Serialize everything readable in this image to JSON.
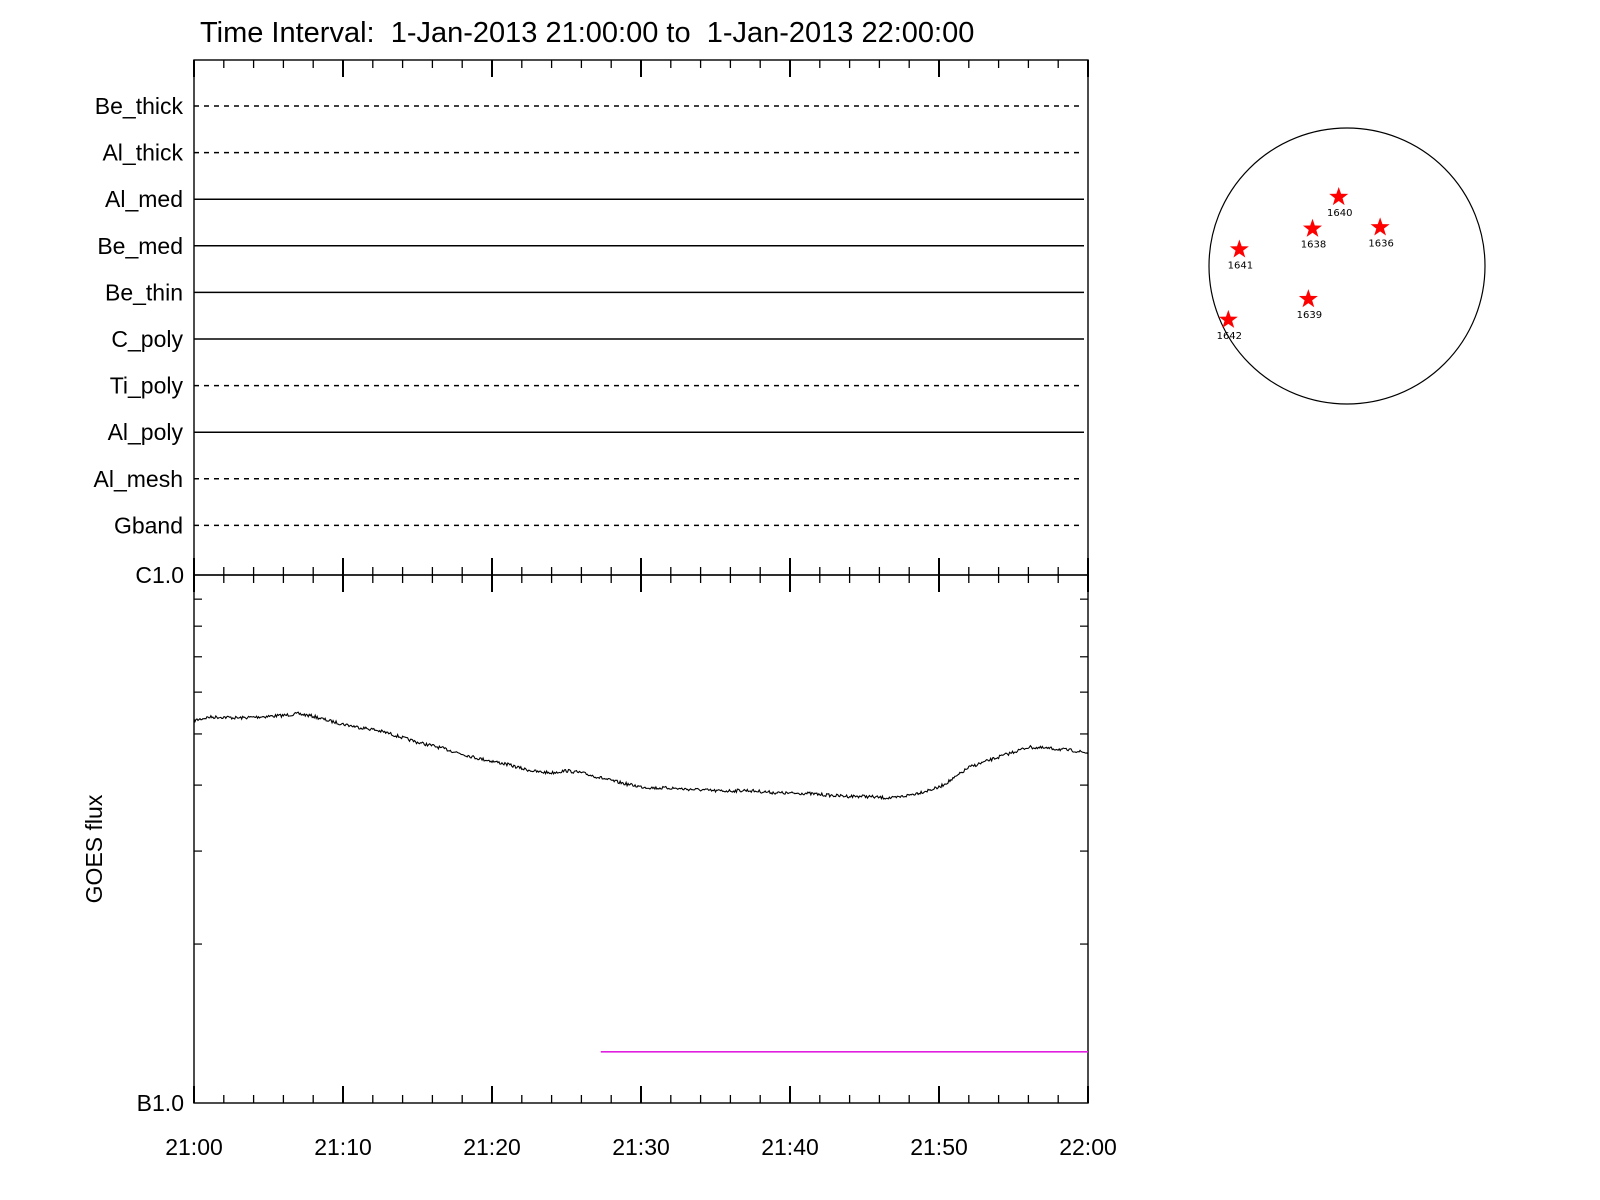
{
  "chart_data": [
    {
      "type": "line",
      "title": "Time Interval:  1-Jan-2013 21:00:00 to  1-Jan-2013 22:00:00",
      "panel": "channel-coverage",
      "channels": [
        {
          "name": "Be_thick",
          "style": "dashed"
        },
        {
          "name": "Al_thick",
          "style": "dashed"
        },
        {
          "name": "Al_med",
          "style": "solid"
        },
        {
          "name": "Be_med",
          "style": "solid"
        },
        {
          "name": "Be_thin",
          "style": "solid"
        },
        {
          "name": "C_poly",
          "style": "solid"
        },
        {
          "name": "Ti_poly",
          "style": "dashed"
        },
        {
          "name": "Al_poly",
          "style": "solid"
        },
        {
          "name": "Al_mesh",
          "style": "dashed"
        },
        {
          "name": "Gband",
          "style": "dashed"
        }
      ],
      "xlim": [
        "21:00",
        "22:00"
      ]
    },
    {
      "type": "line",
      "panel": "goes-flux",
      "ylabel": "GOES flux",
      "yscale": "log",
      "ylim": [
        1e-07,
        1e-06
      ],
      "y_ticks": [
        {
          "label": "B1.0",
          "value": 1e-07
        },
        {
          "label": "C1.0",
          "value": 1e-06
        }
      ],
      "x_ticks": [
        "21:00",
        "21:10",
        "21:20",
        "21:30",
        "21:40",
        "21:50",
        "22:00"
      ],
      "x_minutes": [
        0,
        1,
        2,
        3,
        4,
        5,
        6,
        7,
        8,
        9,
        10,
        11,
        12,
        13,
        14,
        15,
        16,
        17,
        18,
        19,
        20,
        21,
        22,
        23,
        24,
        25,
        26,
        27,
        28,
        29,
        30,
        31,
        32,
        33,
        34,
        35,
        36,
        37,
        38,
        39,
        40,
        41,
        42,
        43,
        44,
        45,
        46,
        47,
        48,
        49,
        50,
        51,
        52,
        53,
        54,
        55,
        56,
        57,
        58,
        59,
        60
      ],
      "series": [
        {
          "color": "#000000",
          "values": [
            5.3e-07,
            5.38e-07,
            5.38e-07,
            5.36e-07,
            5.38e-07,
            5.4e-07,
            5.42e-07,
            5.46e-07,
            5.4e-07,
            5.3e-07,
            5.22e-07,
            5.15e-07,
            5.1e-07,
            5.02e-07,
            4.92e-07,
            4.82e-07,
            4.75e-07,
            4.67e-07,
            4.58e-07,
            4.5e-07,
            4.44e-07,
            4.38e-07,
            4.3e-07,
            4.24e-07,
            4.22e-07,
            4.26e-07,
            4.22e-07,
            4.15e-07,
            4.08e-07,
            4.02e-07,
            3.97e-07,
            3.95e-07,
            3.95e-07,
            3.93e-07,
            3.92e-07,
            3.9e-07,
            3.9e-07,
            3.91e-07,
            3.89e-07,
            3.87e-07,
            3.86e-07,
            3.86e-07,
            3.84e-07,
            3.82e-07,
            3.81e-07,
            3.81e-07,
            3.79e-07,
            3.78e-07,
            3.83e-07,
            3.89e-07,
            3.96e-07,
            4.12e-07,
            4.32e-07,
            4.42e-07,
            4.52e-07,
            4.62e-07,
            4.72e-07,
            4.7e-07,
            4.68e-07,
            4.65e-07,
            4.6e-07
          ]
        },
        {
          "color": "#e020e0",
          "x_range": [
            27.3,
            60
          ],
          "value": 1.25e-07
        }
      ]
    },
    {
      "type": "scatter",
      "panel": "solar-disk",
      "marker": "star",
      "marker_color": "#ff0000",
      "points": [
        {
          "label": "1640",
          "x": -0.06,
          "y": 0.5
        },
        {
          "label": "1638",
          "x": -0.25,
          "y": 0.27
        },
        {
          "label": "1636",
          "x": 0.24,
          "y": 0.28
        },
        {
          "label": "1641",
          "x": -0.78,
          "y": 0.12
        },
        {
          "label": "1639",
          "x": -0.28,
          "y": -0.24
        },
        {
          "label": "1642",
          "x": -0.86,
          "y": -0.39
        }
      ]
    }
  ]
}
